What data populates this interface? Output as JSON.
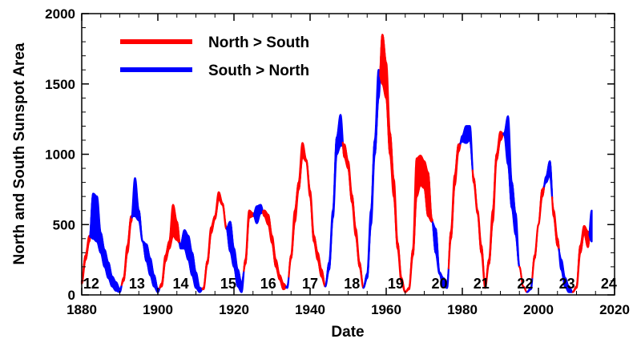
{
  "chart_data": {
    "type": "area",
    "title": "",
    "xlabel": "Date",
    "ylabel": "North and South Sunspot Area",
    "xlim": [
      1880,
      2020
    ],
    "ylim": [
      0,
      2000
    ],
    "x_ticks": [
      1880,
      1900,
      1920,
      1940,
      1960,
      1980,
      2000,
      2020
    ],
    "y_ticks": [
      0,
      500,
      1000,
      1500,
      2000
    ],
    "grid": false,
    "legend_position": "top-left",
    "colors": {
      "north_gt_south": "#ff0000",
      "south_gt_north": "#0000ff"
    },
    "legend": [
      {
        "label": "North > South",
        "color": "#ff0000"
      },
      {
        "label": "South > North",
        "color": "#0000ff"
      }
    ],
    "cycles": [
      {
        "label": "12",
        "year": 1882.5
      },
      {
        "label": "13",
        "year": 1894.5
      },
      {
        "label": "14",
        "year": 1906
      },
      {
        "label": "15",
        "year": 1918.5
      },
      {
        "label": "16",
        "year": 1929
      },
      {
        "label": "17",
        "year": 1940
      },
      {
        "label": "18",
        "year": 1951
      },
      {
        "label": "19",
        "year": 1962.5
      },
      {
        "label": "20",
        "year": 1974
      },
      {
        "label": "21",
        "year": 1985
      },
      {
        "label": "22",
        "year": 1996.5
      },
      {
        "label": "23",
        "year": 2007.5
      },
      {
        "label": "24",
        "year": 2018.5
      }
    ],
    "series": [
      {
        "name": "North",
        "x": [
          1880,
          1881,
          1882,
          1883,
          1884,
          1885,
          1886,
          1887,
          1888,
          1889,
          1890,
          1891,
          1892,
          1893,
          1894,
          1895,
          1896,
          1897,
          1898,
          1899,
          1900,
          1901,
          1902,
          1903,
          1904,
          1905,
          1906,
          1907,
          1908,
          1909,
          1910,
          1911,
          1912,
          1913,
          1914,
          1915,
          1916,
          1917,
          1918,
          1919,
          1920,
          1921,
          1922,
          1923,
          1924,
          1925,
          1926,
          1927,
          1928,
          1929,
          1930,
          1931,
          1932,
          1933,
          1934,
          1935,
          1936,
          1937,
          1938,
          1939,
          1940,
          1941,
          1942,
          1943,
          1944,
          1945,
          1946,
          1947,
          1948,
          1949,
          1950,
          1951,
          1952,
          1953,
          1954,
          1955,
          1956,
          1957,
          1958,
          1959,
          1960,
          1961,
          1962,
          1963,
          1964,
          1965,
          1966,
          1967,
          1968,
          1969,
          1970,
          1971,
          1972,
          1973,
          1974,
          1975,
          1976,
          1977,
          1978,
          1979,
          1980,
          1981,
          1982,
          1983,
          1984,
          1985,
          1986,
          1987,
          1988,
          1989,
          1990,
          1991,
          1992,
          1993,
          1994,
          1995,
          1996,
          1997,
          1998,
          1999,
          2000,
          2001,
          2002,
          2003,
          2004,
          2005,
          2006,
          2007,
          2008,
          2009,
          2010,
          2011,
          2012,
          2013,
          2014
        ],
        "values": [
          100,
          280,
          420,
          400,
          380,
          300,
          200,
          120,
          60,
          30,
          20,
          120,
          350,
          560,
          560,
          530,
          380,
          240,
          140,
          60,
          20,
          80,
          280,
          380,
          640,
          520,
          330,
          330,
          250,
          140,
          50,
          20,
          50,
          240,
          480,
          560,
          730,
          650,
          480,
          310,
          200,
          60,
          20,
          250,
          600,
          580,
          510,
          580,
          600,
          570,
          420,
          250,
          140,
          80,
          50,
          280,
          600,
          800,
          1080,
          960,
          740,
          420,
          300,
          180,
          60,
          180,
          550,
          1000,
          1060,
          1070,
          950,
          710,
          470,
          230,
          50,
          120,
          500,
          1000,
          1400,
          1850,
          1650,
          1150,
          820,
          370,
          120,
          20,
          50,
          320,
          970,
          990,
          950,
          870,
          540,
          300,
          150,
          60,
          50,
          450,
          850,
          1070,
          1090,
          1080,
          1100,
          830,
          600,
          350,
          60,
          250,
          600,
          1000,
          1160,
          1140,
          930,
          620,
          430,
          200,
          60,
          20,
          40,
          280,
          500,
          750,
          800,
          850,
          600,
          400,
          180,
          60,
          20,
          20,
          60,
          350,
          490,
          450,
          380
        ]
      },
      {
        "name": "South",
        "x": [
          1880,
          1881,
          1882,
          1883,
          1884,
          1885,
          1886,
          1887,
          1888,
          1889,
          1890,
          1891,
          1892,
          1893,
          1894,
          1895,
          1896,
          1897,
          1898,
          1899,
          1900,
          1901,
          1902,
          1903,
          1904,
          1905,
          1906,
          1907,
          1908,
          1909,
          1910,
          1911,
          1912,
          1913,
          1914,
          1915,
          1916,
          1917,
          1918,
          1919,
          1920,
          1921,
          1922,
          1923,
          1924,
          1925,
          1926,
          1927,
          1928,
          1929,
          1930,
          1931,
          1932,
          1933,
          1934,
          1935,
          1936,
          1937,
          1938,
          1939,
          1940,
          1941,
          1942,
          1943,
          1944,
          1945,
          1946,
          1947,
          1948,
          1949,
          1950,
          1951,
          1952,
          1953,
          1954,
          1955,
          1956,
          1957,
          1958,
          1959,
          1960,
          1961,
          1962,
          1963,
          1964,
          1965,
          1966,
          1967,
          1968,
          1969,
          1970,
          1971,
          1972,
          1973,
          1974,
          1975,
          1976,
          1977,
          1978,
          1979,
          1980,
          1981,
          1982,
          1983,
          1984,
          1985,
          1986,
          1987,
          1988,
          1989,
          1990,
          1991,
          1992,
          1993,
          1994,
          1995,
          1996,
          1997,
          1998,
          1999,
          2000,
          2001,
          2002,
          2003,
          2004,
          2005,
          2006,
          2007,
          2008,
          2009,
          2010,
          2011,
          2012,
          2013,
          2014
        ],
        "values": [
          80,
          250,
          380,
          720,
          700,
          440,
          320,
          230,
          130,
          90,
          40,
          100,
          300,
          520,
          830,
          600,
          380,
          360,
          260,
          140,
          40,
          60,
          240,
          330,
          420,
          390,
          360,
          460,
          420,
          300,
          160,
          50,
          40,
          220,
          440,
          540,
          680,
          640,
          470,
          520,
          330,
          180,
          80,
          220,
          550,
          560,
          630,
          640,
          560,
          500,
          370,
          200,
          110,
          40,
          60,
          260,
          520,
          750,
          980,
          950,
          700,
          380,
          250,
          130,
          60,
          230,
          600,
          1120,
          1280,
          980,
          900,
          660,
          420,
          200,
          50,
          150,
          600,
          1100,
          1600,
          1500,
          1400,
          1000,
          700,
          330,
          90,
          20,
          40,
          280,
          700,
          780,
          760,
          560,
          520,
          470,
          160,
          120,
          80,
          400,
          780,
          1020,
          1130,
          1200,
          1200,
          800,
          580,
          300,
          50,
          220,
          520,
          960,
          1100,
          1150,
          1270,
          800,
          580,
          200,
          60,
          20,
          50,
          260,
          500,
          700,
          840,
          950,
          560,
          350,
          250,
          120,
          60,
          20,
          50,
          300,
          440,
          340,
          600
        ]
      }
    ]
  },
  "legend": {
    "north_label": "North > South",
    "south_label": "South > North"
  },
  "axes": {
    "xlabel": "Date",
    "ylabel": "North and South Sunspot Area"
  }
}
